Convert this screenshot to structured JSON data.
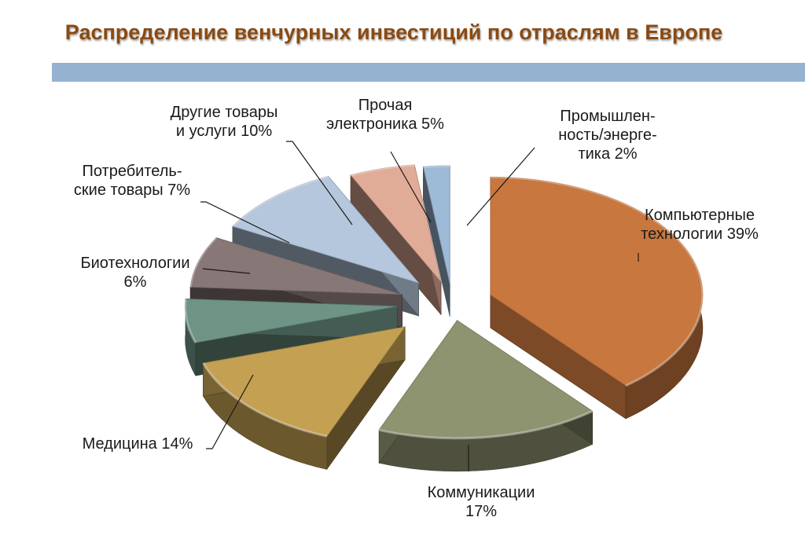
{
  "title": "Распределение венчурных инвестиций по отраслям в Европе",
  "chart_data": {
    "type": "pie",
    "title": "Распределение венчурных инвестиций по отраслям в Европе",
    "unit": "%",
    "slices": [
      {
        "name": "Компьютерные технологии",
        "value": 39,
        "label": [
          "Компьютерные",
          "технологии 39%"
        ],
        "color": "#c8773f"
      },
      {
        "name": "Коммуникации",
        "value": 17,
        "label": [
          "Коммуникации",
          "17%"
        ],
        "color": "#8f9470"
      },
      {
        "name": "Медицина",
        "value": 14,
        "label": [
          "Медицина 14%"
        ],
        "color": "#c4a052"
      },
      {
        "name": "Биотехнологии",
        "value": 6,
        "label": [
          "Биотехнологии",
          "6%"
        ],
        "color": "#6e9486"
      },
      {
        "name": "Потребительские товары",
        "value": 7,
        "label": [
          "Потребитель-",
          "ские товары 7%"
        ],
        "color": "#877776"
      },
      {
        "name": "Другие товары и услуги",
        "value": 10,
        "label": [
          "Другие товары",
          "и услуги 10%"
        ],
        "color": "#b5c7dc"
      },
      {
        "name": "Прочая электроника",
        "value": 5,
        "label": [
          "Прочая",
          "электроника 5%"
        ],
        "color": "#e1ac97"
      },
      {
        "name": "Промышленность/энергетика",
        "value": 2,
        "label": [
          "Промышлен-",
          "ность/энерге-",
          "тика 2%"
        ],
        "color": "#9dbad6"
      }
    ]
  }
}
